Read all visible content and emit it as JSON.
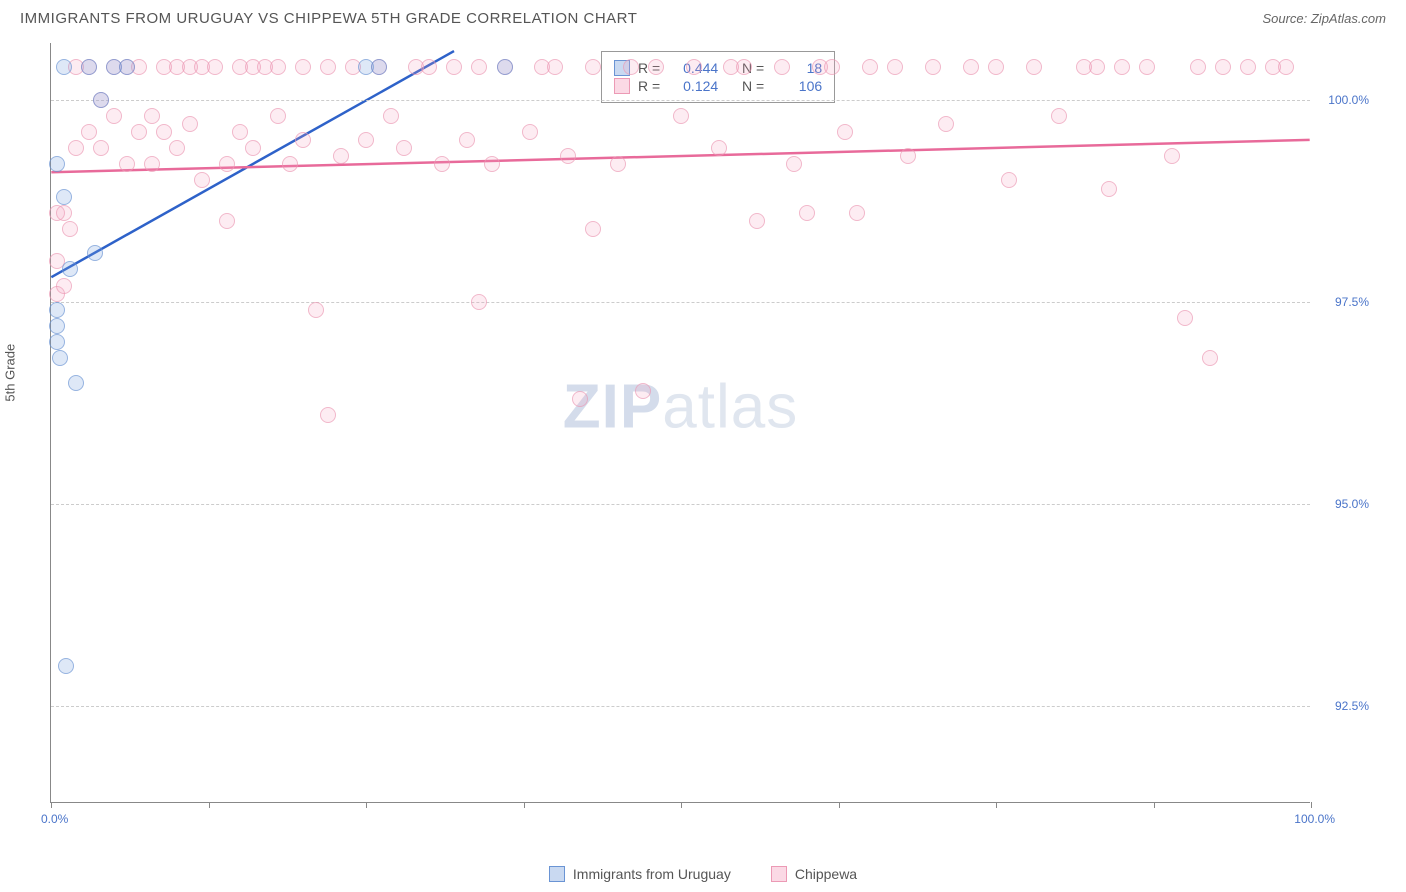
{
  "title": "IMMIGRANTS FROM URUGUAY VS CHIPPEWA 5TH GRADE CORRELATION CHART",
  "source_label": "Source: ",
  "source_name": "ZipAtlas.com",
  "watermark_a": "ZIP",
  "watermark_b": "atlas",
  "y_axis_title": "5th Grade",
  "x_start": "0.0%",
  "x_end": "100.0%",
  "chart": {
    "type": "scatter-with-trendlines",
    "background_color": "#ffffff",
    "gridline_color": "#cccccc",
    "axis_color": "#888888",
    "text_color": "#555555",
    "value_color": "#4a74c9",
    "xlim": [
      0,
      100
    ],
    "ylim": [
      91.3,
      100.7
    ],
    "xticks": [
      0,
      12.5,
      25,
      37.5,
      50,
      62.5,
      75,
      87.5,
      100
    ],
    "ygrid": [
      {
        "v": 100.0,
        "label": "100.0%"
      },
      {
        "v": 97.5,
        "label": "97.5%"
      },
      {
        "v": 95.0,
        "label": "95.0%"
      },
      {
        "v": 92.5,
        "label": "92.5%"
      }
    ],
    "series": [
      {
        "name": "Immigrants from Uruguay",
        "short": "uruguay",
        "color_fill": "rgba(120,160,220,0.35)",
        "color_stroke": "#6a94d4",
        "trend_color": "#2e62c9",
        "R": "0.444",
        "N": "18",
        "trend": {
          "x1": 0,
          "y1": 97.8,
          "x2": 32,
          "y2": 100.6
        },
        "points": [
          [
            0.5,
            99.2
          ],
          [
            0.5,
            97.4
          ],
          [
            0.5,
            97.2
          ],
          [
            0.5,
            97.0
          ],
          [
            0.7,
            96.8
          ],
          [
            1.0,
            100.4
          ],
          [
            1.5,
            97.9
          ],
          [
            2.0,
            96.5
          ],
          [
            3.0,
            100.4
          ],
          [
            3.5,
            98.1
          ],
          [
            4.0,
            100.0
          ],
          [
            1.0,
            98.8
          ],
          [
            1.2,
            93.0
          ],
          [
            5.0,
            100.4
          ],
          [
            6.0,
            100.4
          ],
          [
            25.0,
            100.4
          ],
          [
            26.0,
            100.4
          ],
          [
            36.0,
            100.4
          ]
        ]
      },
      {
        "name": "Chippewa",
        "short": "chippewa",
        "color_fill": "rgba(245,160,190,0.28)",
        "color_stroke": "#ec9ab5",
        "trend_color": "#e86a9a",
        "R": "0.124",
        "N": "106",
        "trend": {
          "x1": 0,
          "y1": 99.1,
          "x2": 100,
          "y2": 99.5
        },
        "points": [
          [
            0.5,
            98.0
          ],
          [
            0.5,
            97.6
          ],
          [
            0.5,
            98.6
          ],
          [
            1,
            98.6
          ],
          [
            1,
            97.7
          ],
          [
            1.5,
            98.4
          ],
          [
            2,
            99.4
          ],
          [
            2,
            100.4
          ],
          [
            3,
            99.6
          ],
          [
            3,
            100.4
          ],
          [
            4,
            99.4
          ],
          [
            4,
            100.0
          ],
          [
            5,
            99.8
          ],
          [
            5,
            100.4
          ],
          [
            6,
            99.2
          ],
          [
            6,
            100.4
          ],
          [
            7,
            99.6
          ],
          [
            7,
            100.4
          ],
          [
            8,
            99.2
          ],
          [
            8,
            99.8
          ],
          [
            9,
            99.6
          ],
          [
            9,
            100.4
          ],
          [
            10,
            100.4
          ],
          [
            10,
            99.4
          ],
          [
            11,
            100.4
          ],
          [
            11,
            99.7
          ],
          [
            12,
            99.0
          ],
          [
            12,
            100.4
          ],
          [
            13,
            100.4
          ],
          [
            14,
            99.2
          ],
          [
            14,
            98.5
          ],
          [
            15,
            100.4
          ],
          [
            15,
            99.6
          ],
          [
            16,
            99.4
          ],
          [
            16,
            100.4
          ],
          [
            17,
            100.4
          ],
          [
            18,
            100.4
          ],
          [
            18,
            99.8
          ],
          [
            19,
            99.2
          ],
          [
            20,
            100.4
          ],
          [
            20,
            99.5
          ],
          [
            21,
            97.4
          ],
          [
            22,
            100.4
          ],
          [
            22,
            96.1
          ],
          [
            23,
            99.3
          ],
          [
            24,
            100.4
          ],
          [
            25,
            99.5
          ],
          [
            26,
            100.4
          ],
          [
            27,
            99.8
          ],
          [
            28,
            99.4
          ],
          [
            29,
            100.4
          ],
          [
            30,
            100.4
          ],
          [
            31,
            99.2
          ],
          [
            32,
            100.4
          ],
          [
            33,
            99.5
          ],
          [
            34,
            100.4
          ],
          [
            34,
            97.5
          ],
          [
            35,
            99.2
          ],
          [
            36,
            100.4
          ],
          [
            38,
            99.6
          ],
          [
            39,
            100.4
          ],
          [
            40,
            100.4
          ],
          [
            41,
            99.3
          ],
          [
            42,
            96.3
          ],
          [
            43,
            100.4
          ],
          [
            43,
            98.4
          ],
          [
            45,
            99.2
          ],
          [
            46,
            100.4
          ],
          [
            47,
            96.4
          ],
          [
            48,
            100.4
          ],
          [
            50,
            99.8
          ],
          [
            51,
            100.4
          ],
          [
            53,
            99.4
          ],
          [
            54,
            100.4
          ],
          [
            55,
            100.4
          ],
          [
            56,
            98.5
          ],
          [
            58,
            100.4
          ],
          [
            59,
            99.2
          ],
          [
            60,
            98.6
          ],
          [
            61,
            100.4
          ],
          [
            62,
            100.4
          ],
          [
            63,
            99.6
          ],
          [
            64,
            98.6
          ],
          [
            65,
            100.4
          ],
          [
            67,
            100.4
          ],
          [
            68,
            99.3
          ],
          [
            70,
            100.4
          ],
          [
            71,
            99.7
          ],
          [
            73,
            100.4
          ],
          [
            75,
            100.4
          ],
          [
            76,
            99.0
          ],
          [
            78,
            100.4
          ],
          [
            80,
            99.8
          ],
          [
            82,
            100.4
          ],
          [
            83,
            100.4
          ],
          [
            84,
            98.9
          ],
          [
            85,
            100.4
          ],
          [
            87,
            100.4
          ],
          [
            89,
            99.3
          ],
          [
            90,
            97.3
          ],
          [
            91,
            100.4
          ],
          [
            92,
            96.8
          ],
          [
            93,
            100.4
          ],
          [
            95,
            100.4
          ],
          [
            97,
            100.4
          ],
          [
            98,
            100.4
          ]
        ]
      }
    ],
    "legend_top": {
      "R_label": "R =",
      "N_label": "N ="
    },
    "bottom_legend": [
      {
        "swatch": "blue",
        "label": "Immigrants from Uruguay"
      },
      {
        "swatch": "pink",
        "label": "Chippewa"
      }
    ]
  }
}
